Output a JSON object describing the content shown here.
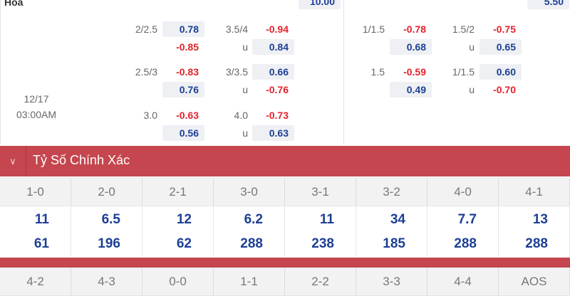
{
  "top": {
    "draw_label": "Hòa",
    "left_value": "10.00",
    "right_value": "5.50"
  },
  "time": {
    "date": "12/17",
    "clock": "03:00AM"
  },
  "left_rows": [
    {
      "l1": "2/2.5",
      "a1": "0.78",
      "b1": "-0.85",
      "l2": "3.5/4",
      "a2": "-0.94",
      "u2": "u",
      "b2": "0.84"
    },
    {
      "l1": "2.5/3",
      "a1": "-0.83",
      "b1": "0.76",
      "l2": "3/3.5",
      "a2": "0.66",
      "u2": "u",
      "b2": "-0.76"
    },
    {
      "l1": "3.0",
      "a1": "-0.63",
      "b1": "0.56",
      "l2": "4.0",
      "a2": "-0.73",
      "u2": "u",
      "b2": "0.63"
    }
  ],
  "right_rows": [
    {
      "l1": "1/1.5",
      "a1": "-0.78",
      "b1": "0.68",
      "l2": "1.5/2",
      "a2": "-0.75",
      "u2": "u",
      "b2": "0.65"
    },
    {
      "l1": "1.5",
      "a1": "-0.59",
      "b1": "0.49",
      "l2": "1/1.5",
      "a2": "0.60",
      "u2": "u",
      "b2": "-0.70"
    }
  ],
  "section": {
    "title": "Tỷ Số Chính Xác",
    "icon": "chevron-down-icon"
  },
  "scores": [
    "1-0",
    "2-0",
    "2-1",
    "3-0",
    "3-1",
    "3-2",
    "4-0",
    "4-1"
  ],
  "odds_top": [
    "11",
    "6.5",
    "12",
    "6.2",
    "11",
    "34",
    "7.7",
    "13"
  ],
  "odds_bottom": [
    "61",
    "196",
    "62",
    "288",
    "238",
    "185",
    "288",
    "288"
  ],
  "scores2": [
    "4-2",
    "4-3",
    "0-0",
    "1-1",
    "2-2",
    "3-3",
    "4-4",
    "AOS"
  ],
  "colors": {
    "header_red": "#c5464e",
    "positive_blue": "#1d3f94",
    "negative_red": "#e3222b"
  }
}
